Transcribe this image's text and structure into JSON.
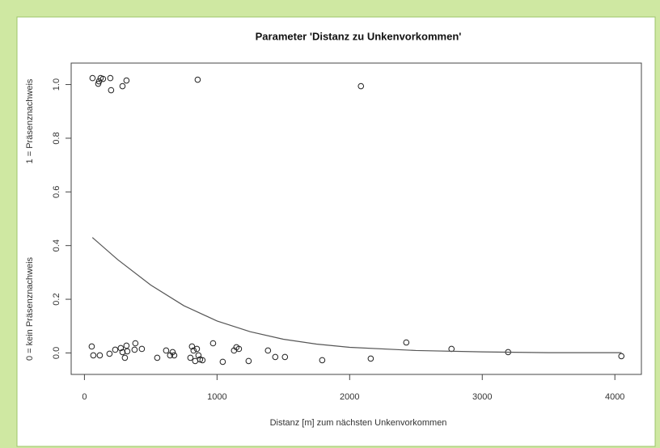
{
  "chart_data": {
    "type": "scatter",
    "title": "Parameter 'Distanz zu Unkenvorkommen'",
    "xlabel": "Distanz [m] zum nächsten Unkenvorkommen",
    "ylabel": [
      "0 = kein Präsenznachweis",
      "1 = Präsenznachweis"
    ],
    "color": "#222222",
    "points": {
      "x": [
        61,
        110,
        122,
        104,
        140,
        195,
        201,
        287,
        317,
        854,
        2085,
        55,
        67,
        116,
        189,
        232,
        274,
        287,
        305,
        317,
        323,
        378,
        384,
        433,
        549,
        616,
        646,
        665,
        677,
        799,
        811,
        823,
        835,
        848,
        860,
        872,
        890,
        970,
        1043,
        1128,
        1146,
        1165,
        1238,
        1384,
        1439,
        1512,
        1793,
        2159,
        2427,
        2768,
        3195,
        4049
      ],
      "y": [
        1.024,
        1.012,
        1.024,
        1.003,
        1.021,
        1.024,
        0.979,
        0.994,
        1.015,
        1.018,
        0.994,
        0.024,
        -0.009,
        -0.009,
        -0.003,
        0.012,
        0.018,
        0.003,
        -0.018,
        0.027,
        0.006,
        0.012,
        0.036,
        0.015,
        -0.018,
        0.009,
        -0.009,
        0.003,
        -0.009,
        -0.018,
        0.024,
        0.009,
        -0.03,
        0.015,
        -0.009,
        -0.024,
        -0.027,
        0.036,
        -0.033,
        0.009,
        0.021,
        0.015,
        -0.03,
        0.009,
        -0.015,
        -0.015,
        -0.027,
        -0.021,
        0.039,
        0.015,
        0.003,
        -0.012
      ]
    },
    "curve": {
      "x": [
        60,
        250,
        500,
        750,
        1000,
        1250,
        1500,
        1750,
        2000,
        2500,
        3000,
        3500,
        4050
      ],
      "y": [
        0.43,
        0.348,
        0.253,
        0.176,
        0.119,
        0.079,
        0.051,
        0.033,
        0.021,
        0.009,
        0.004,
        0.001,
        0.001
      ]
    },
    "xlim": [
      -100,
      4200
    ],
    "ylim": [
      -0.08,
      1.08
    ],
    "xticks": [
      0,
      1000,
      2000,
      3000,
      4000
    ],
    "yticks": [
      {
        "value": 0,
        "label": "0.0"
      },
      0.2,
      0.4,
      0.6,
      0.8,
      {
        "value": 1,
        "label": "1.0"
      }
    ]
  }
}
